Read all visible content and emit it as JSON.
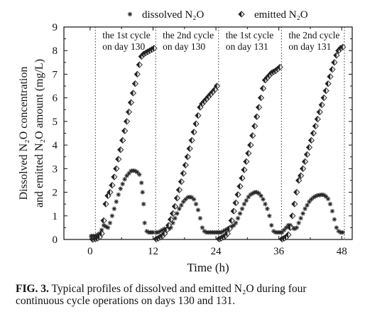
{
  "chart_data": {
    "type": "scatter",
    "xlabel": "Time (h)",
    "ylabel_line1": "Dissolved N₂O concentration",
    "ylabel_line2": "and emitted N₂O amount (mg/L)",
    "xlim": [
      -5,
      50
    ],
    "ylim": [
      0,
      9
    ],
    "x_ticks": [
      0,
      12,
      24,
      36,
      48
    ],
    "y_ticks": [
      0,
      1,
      2,
      3,
      4,
      5,
      6,
      7,
      8,
      9
    ],
    "grid": false,
    "legend_position": "top",
    "cycle_boundaries": [
      1,
      12.5,
      24.5,
      36.5,
      48.5
    ],
    "cycle_labels": [
      {
        "line1": "the 1st cycle",
        "line2": "on day 130"
      },
      {
        "line1": "the 2nd cycle",
        "line2": "on day 130"
      },
      {
        "line1": "the 1st cycle",
        "line2": "on day 131"
      },
      {
        "line1": "the 2nd cycle",
        "line2": "on day 131"
      }
    ],
    "series": [
      {
        "name": "dissolved N₂O",
        "marker": "star",
        "x": [
          0.2,
          0.6,
          1.0,
          1.4,
          1.8,
          2.2,
          2.6,
          3.0,
          3.4,
          3.8,
          4.2,
          4.6,
          5.0,
          5.4,
          5.8,
          6.2,
          6.6,
          7.0,
          7.4,
          7.8,
          8.2,
          8.6,
          9.0,
          9.4,
          9.8,
          10.0,
          10.2,
          10.4,
          10.8,
          11.2,
          11.6,
          12.0,
          12.6,
          13.0,
          13.4,
          13.8,
          14.2,
          14.6,
          15.0,
          15.4,
          15.8,
          16.2,
          16.6,
          17.0,
          17.4,
          17.8,
          18.2,
          18.6,
          19.0,
          19.4,
          19.8,
          20.2,
          20.6,
          21.0,
          21.4,
          21.8,
          22.2,
          22.6,
          23.0,
          23.4,
          23.8,
          24.2,
          24.6,
          25.0,
          25.4,
          25.8,
          26.2,
          26.6,
          27.0,
          27.4,
          27.8,
          28.2,
          28.6,
          29.0,
          29.4,
          29.8,
          30.2,
          30.6,
          31.0,
          31.4,
          31.8,
          32.2,
          32.6,
          33.0,
          33.4,
          33.8,
          34.2,
          34.6,
          35.0,
          35.4,
          35.8,
          36.2,
          36.6,
          37.0,
          37.4,
          37.8,
          38.2,
          38.6,
          39.0,
          39.4,
          39.8,
          40.2,
          40.6,
          41.0,
          41.4,
          41.8,
          42.2,
          42.6,
          43.0,
          43.4,
          43.8,
          44.2,
          44.6,
          45.0,
          45.4,
          45.8,
          46.2,
          46.6,
          47.0,
          47.4,
          47.8,
          48.2
        ],
        "y": [
          0.15,
          0.15,
          0.15,
          0.2,
          0.25,
          0.4,
          0.6,
          0.55,
          0.5,
          0.7,
          1.0,
          1.3,
          1.6,
          1.9,
          2.15,
          2.35,
          2.55,
          2.7,
          2.8,
          2.9,
          2.92,
          2.9,
          2.85,
          2.75,
          2.4,
          2.0,
          1.5,
          0.7,
          0.35,
          0.3,
          0.3,
          0.3,
          0.3,
          0.3,
          0.35,
          0.4,
          0.45,
          0.45,
          0.45,
          0.5,
          0.7,
          0.9,
          1.1,
          1.3,
          1.45,
          1.6,
          1.7,
          1.78,
          1.8,
          1.78,
          1.7,
          1.5,
          1.25,
          0.9,
          0.5,
          0.35,
          0.3,
          0.3,
          0.3,
          0.3,
          0.3,
          0.3,
          0.3,
          0.3,
          0.35,
          0.4,
          0.45,
          0.5,
          0.55,
          0.6,
          0.7,
          0.9,
          1.1,
          1.3,
          1.5,
          1.65,
          1.8,
          1.9,
          1.95,
          2.0,
          2.0,
          1.95,
          1.85,
          1.7,
          1.5,
          1.3,
          1.0,
          0.6,
          0.35,
          0.3,
          0.3,
          0.3,
          0.3,
          0.4,
          0.5,
          0.6,
          0.6,
          0.5,
          0.45,
          0.5,
          0.7,
          0.9,
          1.1,
          1.3,
          1.45,
          1.6,
          1.7,
          1.78,
          1.83,
          1.87,
          1.88,
          1.9,
          1.88,
          1.82,
          1.72,
          1.5,
          1.2,
          0.85,
          0.5,
          0.35,
          0.3,
          0.3
        ]
      },
      {
        "name": "emitted N₂O",
        "marker": "half-filled-diamond",
        "x": [
          0.5,
          1.0,
          1.4,
          1.8,
          2.2,
          2.6,
          3.0,
          3.4,
          3.8,
          4.2,
          4.6,
          5.0,
          5.4,
          5.8,
          6.2,
          6.6,
          7.0,
          7.4,
          7.8,
          8.2,
          8.6,
          9.0,
          9.4,
          9.8,
          10.2,
          10.6,
          11.0,
          11.4,
          11.8,
          12.2,
          12.6,
          13.0,
          13.4,
          13.8,
          14.2,
          14.6,
          15.0,
          15.4,
          15.8,
          16.2,
          16.6,
          17.0,
          17.4,
          17.8,
          18.2,
          18.6,
          19.0,
          19.4,
          19.8,
          20.2,
          20.6,
          21.0,
          21.4,
          21.8,
          22.2,
          22.6,
          23.0,
          23.4,
          23.8,
          24.2,
          24.6,
          25.0,
          25.4,
          25.8,
          26.2,
          26.6,
          27.0,
          27.4,
          27.8,
          28.2,
          28.6,
          29.0,
          29.4,
          29.8,
          30.2,
          30.6,
          31.0,
          31.4,
          31.8,
          32.2,
          32.6,
          33.0,
          33.4,
          33.8,
          34.2,
          34.6,
          35.0,
          35.4,
          35.8,
          36.2,
          36.6,
          37.0,
          37.4,
          37.8,
          38.2,
          38.6,
          39.0,
          39.4,
          39.8,
          40.2,
          40.6,
          41.0,
          41.4,
          41.8,
          42.2,
          42.6,
          43.0,
          43.4,
          43.8,
          44.2,
          44.6,
          45.0,
          45.4,
          45.8,
          46.2,
          46.6,
          47.0,
          47.4,
          47.8,
          48.2
        ],
        "y": [
          0,
          0.02,
          0.05,
          0.1,
          0.25,
          0.8,
          1.5,
          1.85,
          2.0,
          2.3,
          2.65,
          3.0,
          3.4,
          3.8,
          4.2,
          4.6,
          5.0,
          5.4,
          5.8,
          6.2,
          6.6,
          7.0,
          7.4,
          7.75,
          7.85,
          7.9,
          7.95,
          8.0,
          8.05,
          8.1,
          0.02,
          0.05,
          0.1,
          0.15,
          0.25,
          0.4,
          0.6,
          0.85,
          1.1,
          1.4,
          1.75,
          2.1,
          2.45,
          2.8,
          3.15,
          3.5,
          3.85,
          4.2,
          4.55,
          4.9,
          5.25,
          5.6,
          5.75,
          5.85,
          5.95,
          6.05,
          6.15,
          6.25,
          6.35,
          6.5,
          0.02,
          0.05,
          0.1,
          0.15,
          0.25,
          0.45,
          0.8,
          1.2,
          1.55,
          1.9,
          2.25,
          2.6,
          2.95,
          3.3,
          3.65,
          4.0,
          4.4,
          4.8,
          5.2,
          5.6,
          6.0,
          6.4,
          6.75,
          6.85,
          6.95,
          7.05,
          7.1,
          7.15,
          7.22,
          7.3,
          0.02,
          0.05,
          0.1,
          0.2,
          0.5,
          1.0,
          1.5,
          2.0,
          2.5,
          2.7,
          3.0,
          3.3,
          3.6,
          3.9,
          4.2,
          4.5,
          4.8,
          5.1,
          5.4,
          5.7,
          6.0,
          6.3,
          6.6,
          6.9,
          7.2,
          7.5,
          7.8,
          8.0,
          8.1,
          8.15
        ]
      }
    ]
  },
  "caption": {
    "label": "FIG. 3.",
    "text": "Typical profiles of dissolved and emitted N₂O during four continuous cycle operations on days 130 and 131."
  }
}
